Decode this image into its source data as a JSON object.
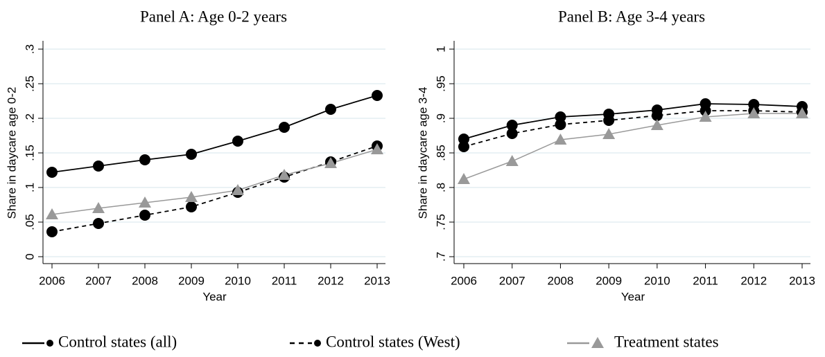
{
  "chart_data": [
    {
      "type": "line",
      "title": "Panel A: Age 0-2 years",
      "xlabel": "Year",
      "ylabel": "Share in daycare age 0-2",
      "x": [
        2006,
        2007,
        2008,
        2009,
        2010,
        2011,
        2012,
        2013
      ],
      "xlim": [
        2006,
        2013
      ],
      "xticks": [
        2006,
        2007,
        2008,
        2009,
        2010,
        2011,
        2012,
        2013
      ],
      "ylim": [
        0,
        0.3
      ],
      "yticks": [
        0,
        {
          "value": 0.05,
          "label": ".05"
        },
        {
          "value": 0.1,
          "label": ".1"
        },
        {
          "value": 0.15,
          "label": ".15"
        },
        {
          "value": 0.2,
          "label": ".2"
        },
        {
          "value": 0.25,
          "label": ".25"
        },
        {
          "value": 0.3,
          "label": ".3"
        }
      ],
      "grid": true,
      "series": [
        {
          "name": "Control states (all)",
          "color": "#000000",
          "style": "solid",
          "marker": "circle",
          "values": [
            0.122,
            0.131,
            0.14,
            0.148,
            0.167,
            0.187,
            0.213,
            0.233
          ]
        },
        {
          "name": "Control states (West)",
          "color": "#000000",
          "style": "dashed",
          "marker": "circle",
          "values": [
            0.036,
            0.048,
            0.06,
            0.072,
            0.093,
            0.115,
            0.137,
            0.16
          ]
        },
        {
          "name": "Treatment states",
          "color": "#999999",
          "style": "solid",
          "marker": "triangle",
          "values": [
            0.061,
            0.07,
            0.078,
            0.086,
            0.096,
            0.118,
            0.135,
            0.155
          ]
        }
      ]
    },
    {
      "type": "line",
      "title": "Panel B: Age 3-4 years",
      "xlabel": "Year",
      "ylabel": "Share in daycare age 3-4",
      "x": [
        2006,
        2007,
        2008,
        2009,
        2010,
        2011,
        2012,
        2013
      ],
      "xlim": [
        2006,
        2013
      ],
      "xticks": [
        2006,
        2007,
        2008,
        2009,
        2010,
        2011,
        2012,
        2013
      ],
      "ylim": [
        0.7,
        1
      ],
      "yticks": [
        {
          "value": 0.7,
          "label": ".7"
        },
        {
          "value": 0.75,
          "label": ".75"
        },
        {
          "value": 0.8,
          "label": ".8"
        },
        {
          "value": 0.85,
          "label": ".85"
        },
        {
          "value": 0.9,
          "label": ".9"
        },
        {
          "value": 0.95,
          "label": ".95"
        },
        1
      ],
      "grid": true,
      "series": [
        {
          "color": "#000000",
          "style": "solid",
          "marker": "circle",
          "values": [
            0.87,
            0.89,
            0.902,
            0.906,
            0.912,
            0.921,
            0.92,
            0.917
          ]
        },
        {
          "color": "#000000",
          "style": "dashed",
          "marker": "circle",
          "values": [
            0.859,
            0.878,
            0.891,
            0.897,
            0.904,
            0.911,
            0.911,
            0.909
          ]
        },
        {
          "color": "#999999",
          "style": "solid",
          "marker": "triangle",
          "values": [
            0.812,
            0.838,
            0.869,
            0.877,
            0.89,
            0.902,
            0.907,
            0.907
          ]
        }
      ]
    }
  ]
}
